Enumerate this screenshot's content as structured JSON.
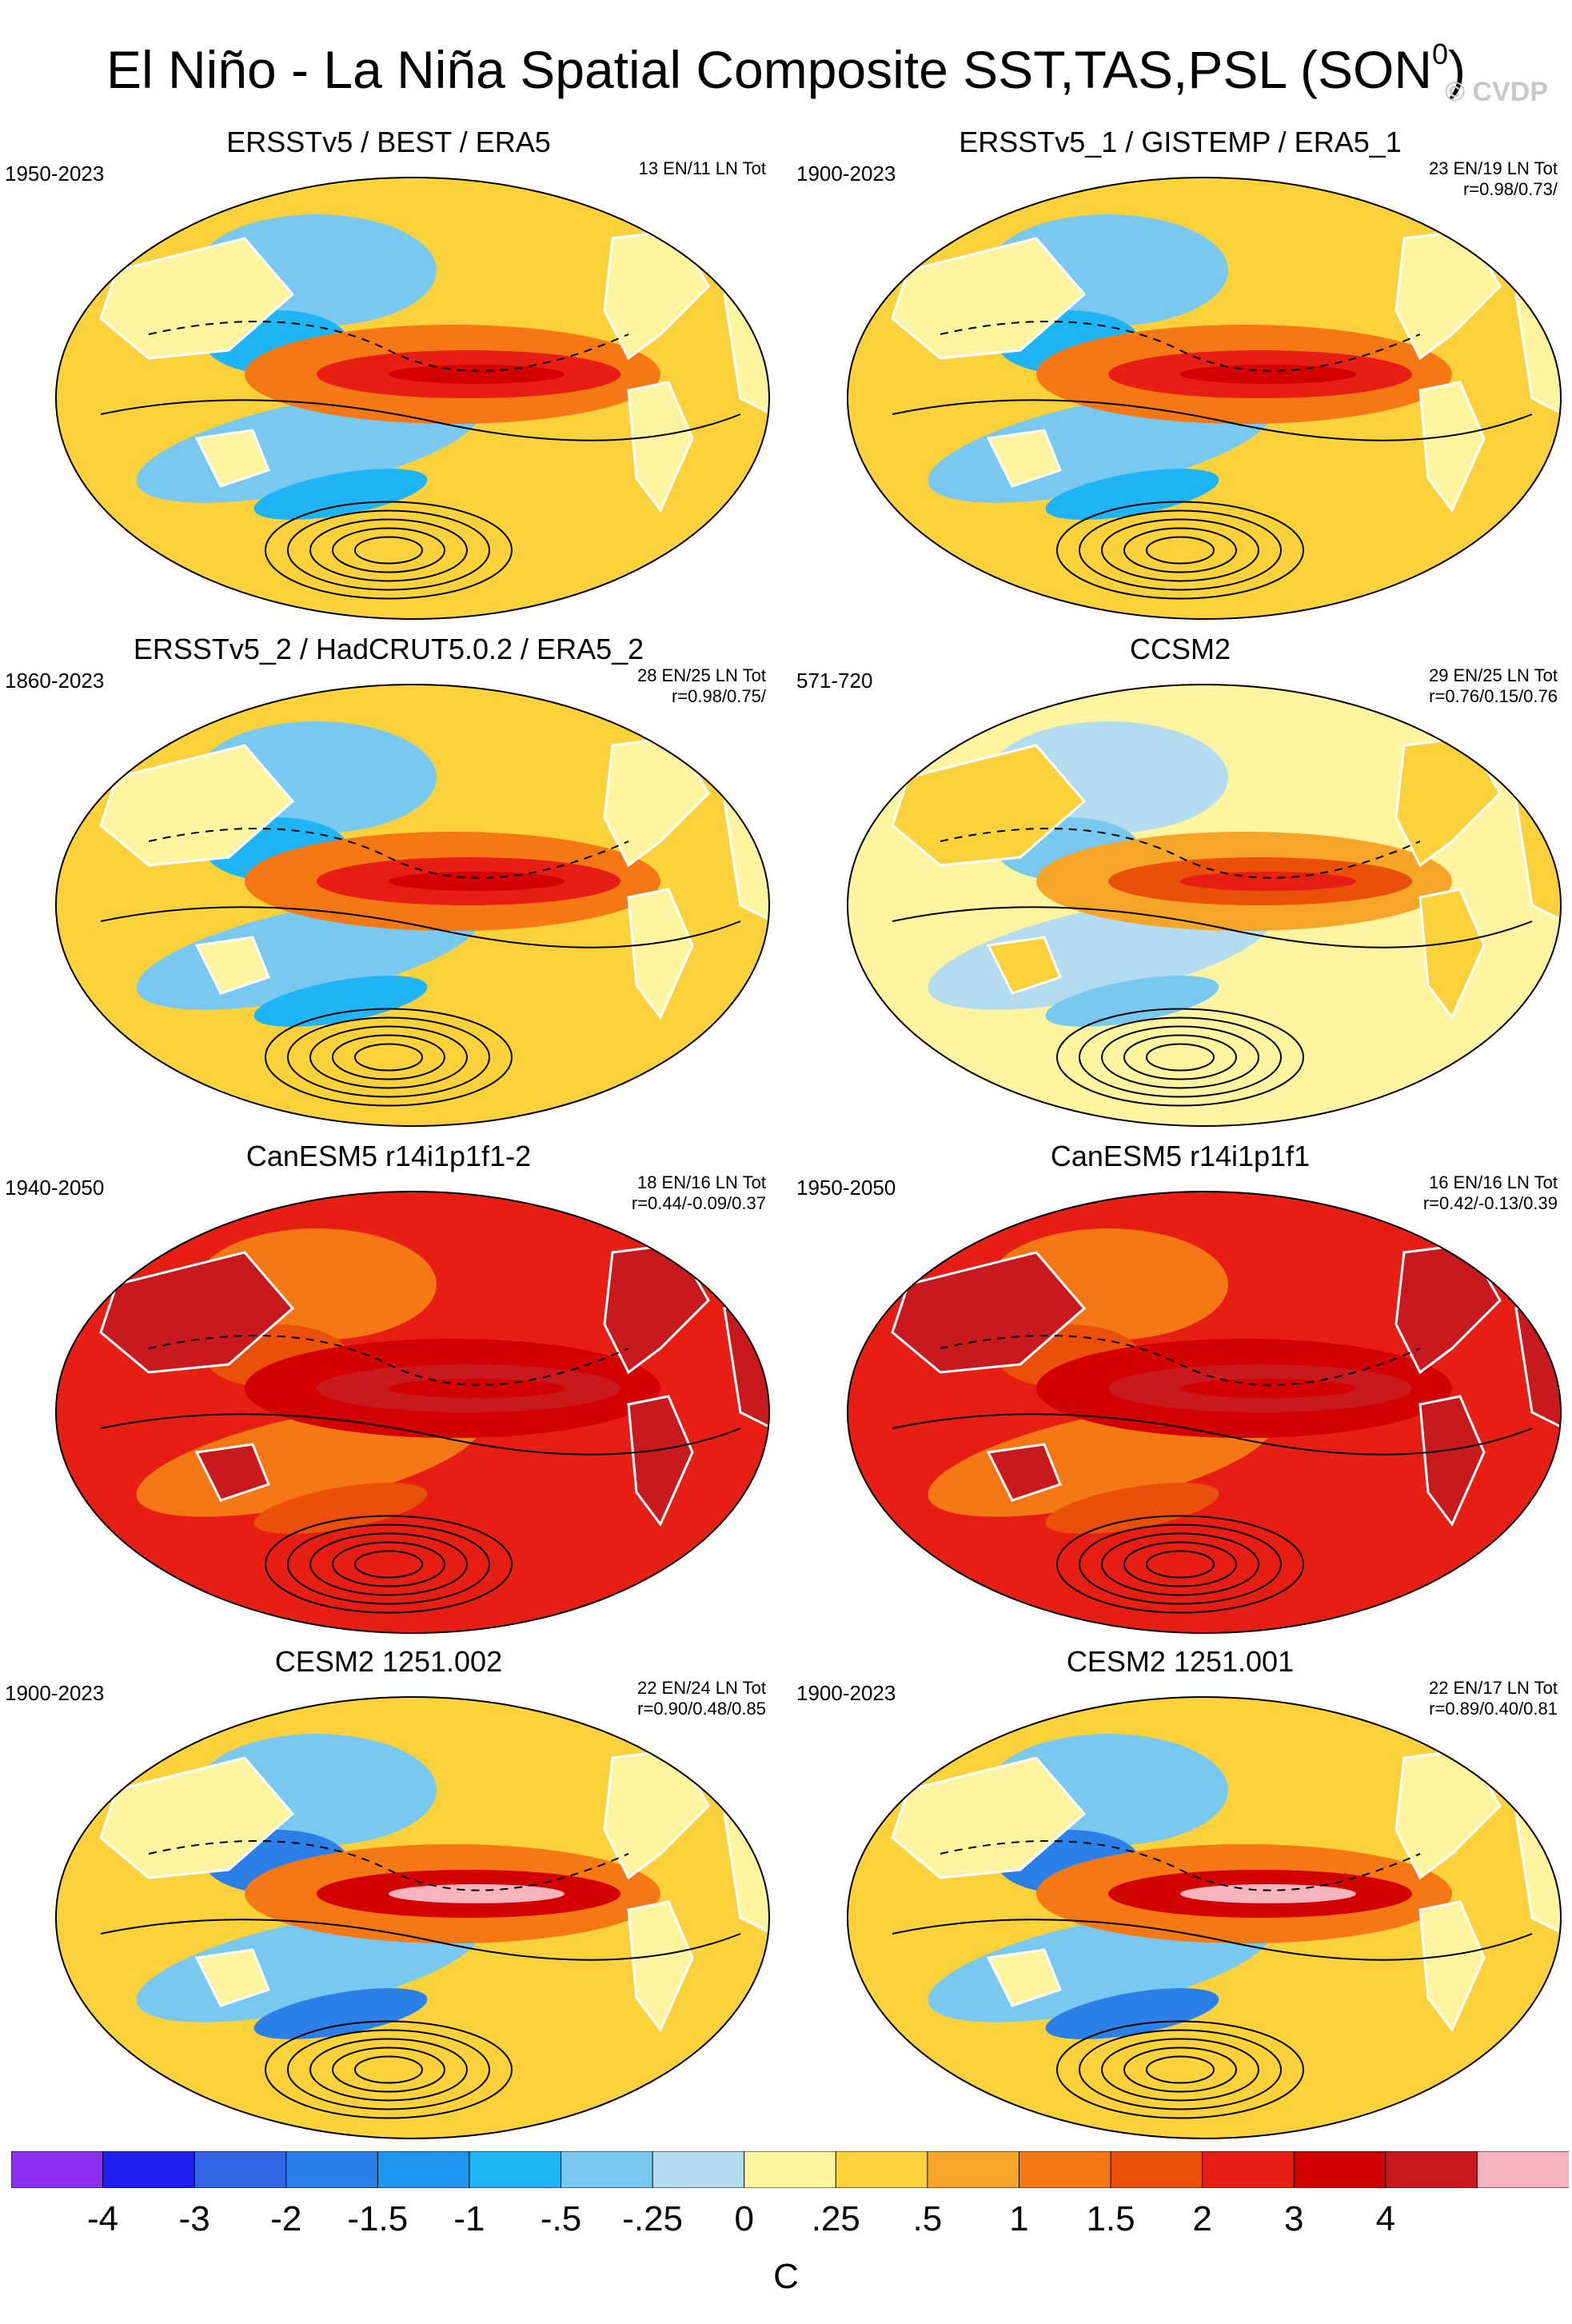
{
  "title": {
    "main": "El Niño - La Niña Spatial Composite SST,TAS,PSL (SON",
    "superscript": "0",
    "close": ")"
  },
  "copyright": "© CVDP",
  "panels": [
    {
      "title": "ERSSTv5 / BEST / ERA5",
      "period": "1950-2023",
      "stats_line1": "13 EN/11 LN Tot",
      "stats_line2": "",
      "scheme": "obs"
    },
    {
      "title": "ERSSTv5_1 / GISTEMP / ERA5_1",
      "period": "1900-2023",
      "stats_line1": "23 EN/19 LN Tot",
      "stats_line2": "r=0.98/0.73/",
      "scheme": "obs"
    },
    {
      "title": "ERSSTv5_2 / HadCRUT5.0.2 / ERA5_2",
      "period": "1860-2023",
      "stats_line1": "28 EN/25 LN Tot",
      "stats_line2": "r=0.98/0.75/",
      "scheme": "obs"
    },
    {
      "title": "CCSM2",
      "period": "571-720",
      "stats_line1": "29 EN/25 LN Tot",
      "stats_line2": "r=0.76/0.15/0.76",
      "scheme": "model"
    },
    {
      "title": "CanESM5 r14i1p1f1-2",
      "period": "1940-2050",
      "stats_line1": "18 EN/16 LN Tot",
      "stats_line2": "r=0.44/-0.09/0.37",
      "scheme": "warm"
    },
    {
      "title": "CanESM5 r14i1p1f1",
      "period": "1950-2050",
      "stats_line1": "16 EN/16 LN Tot",
      "stats_line2": "r=0.42/-0.13/0.39",
      "scheme": "warm"
    },
    {
      "title": "CESM2 1251.002",
      "period": "1900-2023",
      "stats_line1": "22 EN/24 LN Tot",
      "stats_line2": "r=0.90/0.48/0.85",
      "scheme": "cesm"
    },
    {
      "title": "CESM2 1251.001",
      "period": "1900-2023",
      "stats_line1": "22 EN/17 LN Tot",
      "stats_line2": "r=0.89/0.40/0.81",
      "scheme": "cesm"
    }
  ],
  "colorbar": {
    "colors": [
      "#8c30f0",
      "#1e1ef0",
      "#3264e6",
      "#2b80e8",
      "#1e96f0",
      "#1eb4f5",
      "#78c8f0",
      "#b4dcf0",
      "#fff5a0",
      "#fcd23c",
      "#f5a528",
      "#f57814",
      "#eb500a",
      "#e61e14",
      "#d20000",
      "#c8191e",
      "#f5b4be"
    ],
    "labels": [
      "-4",
      "-3",
      "-2",
      "-1.5",
      "-1",
      "-.5",
      "-.25",
      "0",
      ".25",
      ".5",
      "1",
      "1.5",
      "2",
      "3",
      "4"
    ],
    "units": "C"
  }
}
